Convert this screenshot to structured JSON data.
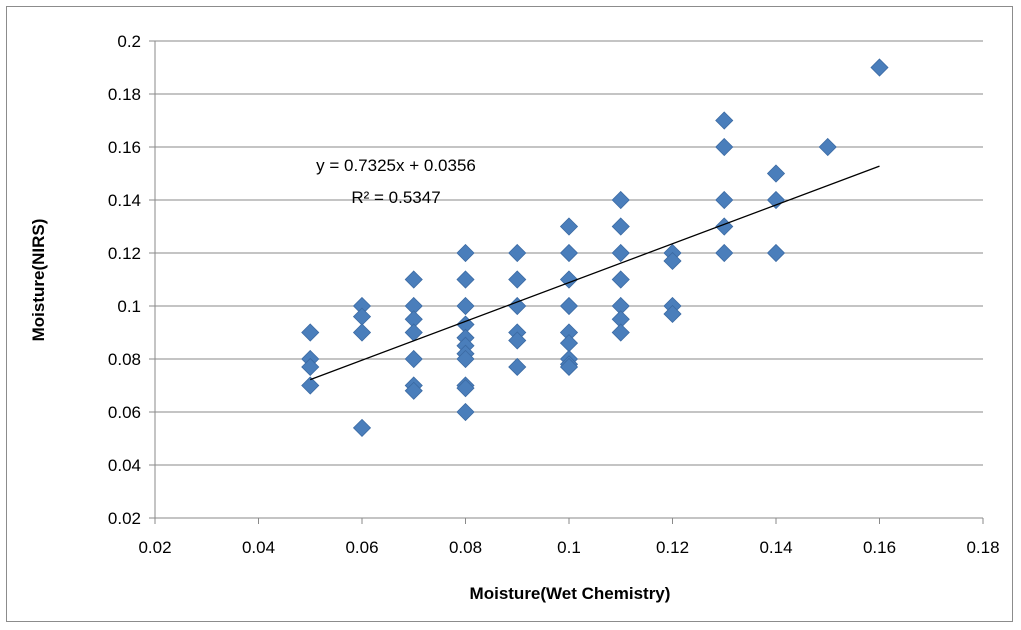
{
  "chart_data": {
    "type": "scatter",
    "title": "",
    "xlabel": "Moisture(Wet Chemistry)",
    "ylabel": "Moisture(NIRS)",
    "xlim": [
      0.02,
      0.18
    ],
    "ylim": [
      0.02,
      0.2
    ],
    "x_ticks": [
      "0.02",
      "0.04",
      "0.06",
      "0.08",
      "0.1",
      "0.12",
      "0.14",
      "0.16",
      "0.18"
    ],
    "y_ticks": [
      "0.02",
      "0.04",
      "0.06",
      "0.08",
      "0.1",
      "0.12",
      "0.14",
      "0.16",
      "0.18",
      "0.2"
    ],
    "grid": "horizontal",
    "marker_color": "#4a7ebb",
    "trendline": {
      "slope": 0.7325,
      "intercept": 0.0356,
      "x_range": [
        0.05,
        0.16
      ],
      "equation": "y = 0.7325x + 0.0356",
      "r_squared": "R² = 0.5347"
    },
    "points": [
      [
        0.05,
        0.09
      ],
      [
        0.05,
        0.08
      ],
      [
        0.05,
        0.077
      ],
      [
        0.05,
        0.07
      ],
      [
        0.06,
        0.1
      ],
      [
        0.06,
        0.096
      ],
      [
        0.06,
        0.09
      ],
      [
        0.06,
        0.054
      ],
      [
        0.07,
        0.11
      ],
      [
        0.07,
        0.1
      ],
      [
        0.07,
        0.095
      ],
      [
        0.07,
        0.09
      ],
      [
        0.07,
        0.08
      ],
      [
        0.07,
        0.07
      ],
      [
        0.07,
        0.068
      ],
      [
        0.08,
        0.12
      ],
      [
        0.08,
        0.11
      ],
      [
        0.08,
        0.1
      ],
      [
        0.08,
        0.093
      ],
      [
        0.08,
        0.088
      ],
      [
        0.08,
        0.085
      ],
      [
        0.08,
        0.082
      ],
      [
        0.08,
        0.08
      ],
      [
        0.08,
        0.07
      ],
      [
        0.08,
        0.069
      ],
      [
        0.08,
        0.06
      ],
      [
        0.09,
        0.12
      ],
      [
        0.09,
        0.11
      ],
      [
        0.09,
        0.1
      ],
      [
        0.09,
        0.09
      ],
      [
        0.09,
        0.087
      ],
      [
        0.09,
        0.077
      ],
      [
        0.1,
        0.13
      ],
      [
        0.1,
        0.12
      ],
      [
        0.1,
        0.11
      ],
      [
        0.1,
        0.1
      ],
      [
        0.1,
        0.09
      ],
      [
        0.1,
        0.086
      ],
      [
        0.1,
        0.08
      ],
      [
        0.1,
        0.078
      ],
      [
        0.1,
        0.077
      ],
      [
        0.11,
        0.14
      ],
      [
        0.11,
        0.13
      ],
      [
        0.11,
        0.12
      ],
      [
        0.11,
        0.11
      ],
      [
        0.11,
        0.1
      ],
      [
        0.11,
        0.095
      ],
      [
        0.11,
        0.09
      ],
      [
        0.12,
        0.12
      ],
      [
        0.12,
        0.117
      ],
      [
        0.12,
        0.1
      ],
      [
        0.12,
        0.097
      ],
      [
        0.13,
        0.17
      ],
      [
        0.13,
        0.16
      ],
      [
        0.13,
        0.14
      ],
      [
        0.13,
        0.13
      ],
      [
        0.13,
        0.12
      ],
      [
        0.14,
        0.15
      ],
      [
        0.14,
        0.14
      ],
      [
        0.14,
        0.12
      ],
      [
        0.15,
        0.16
      ],
      [
        0.16,
        0.19
      ]
    ]
  }
}
